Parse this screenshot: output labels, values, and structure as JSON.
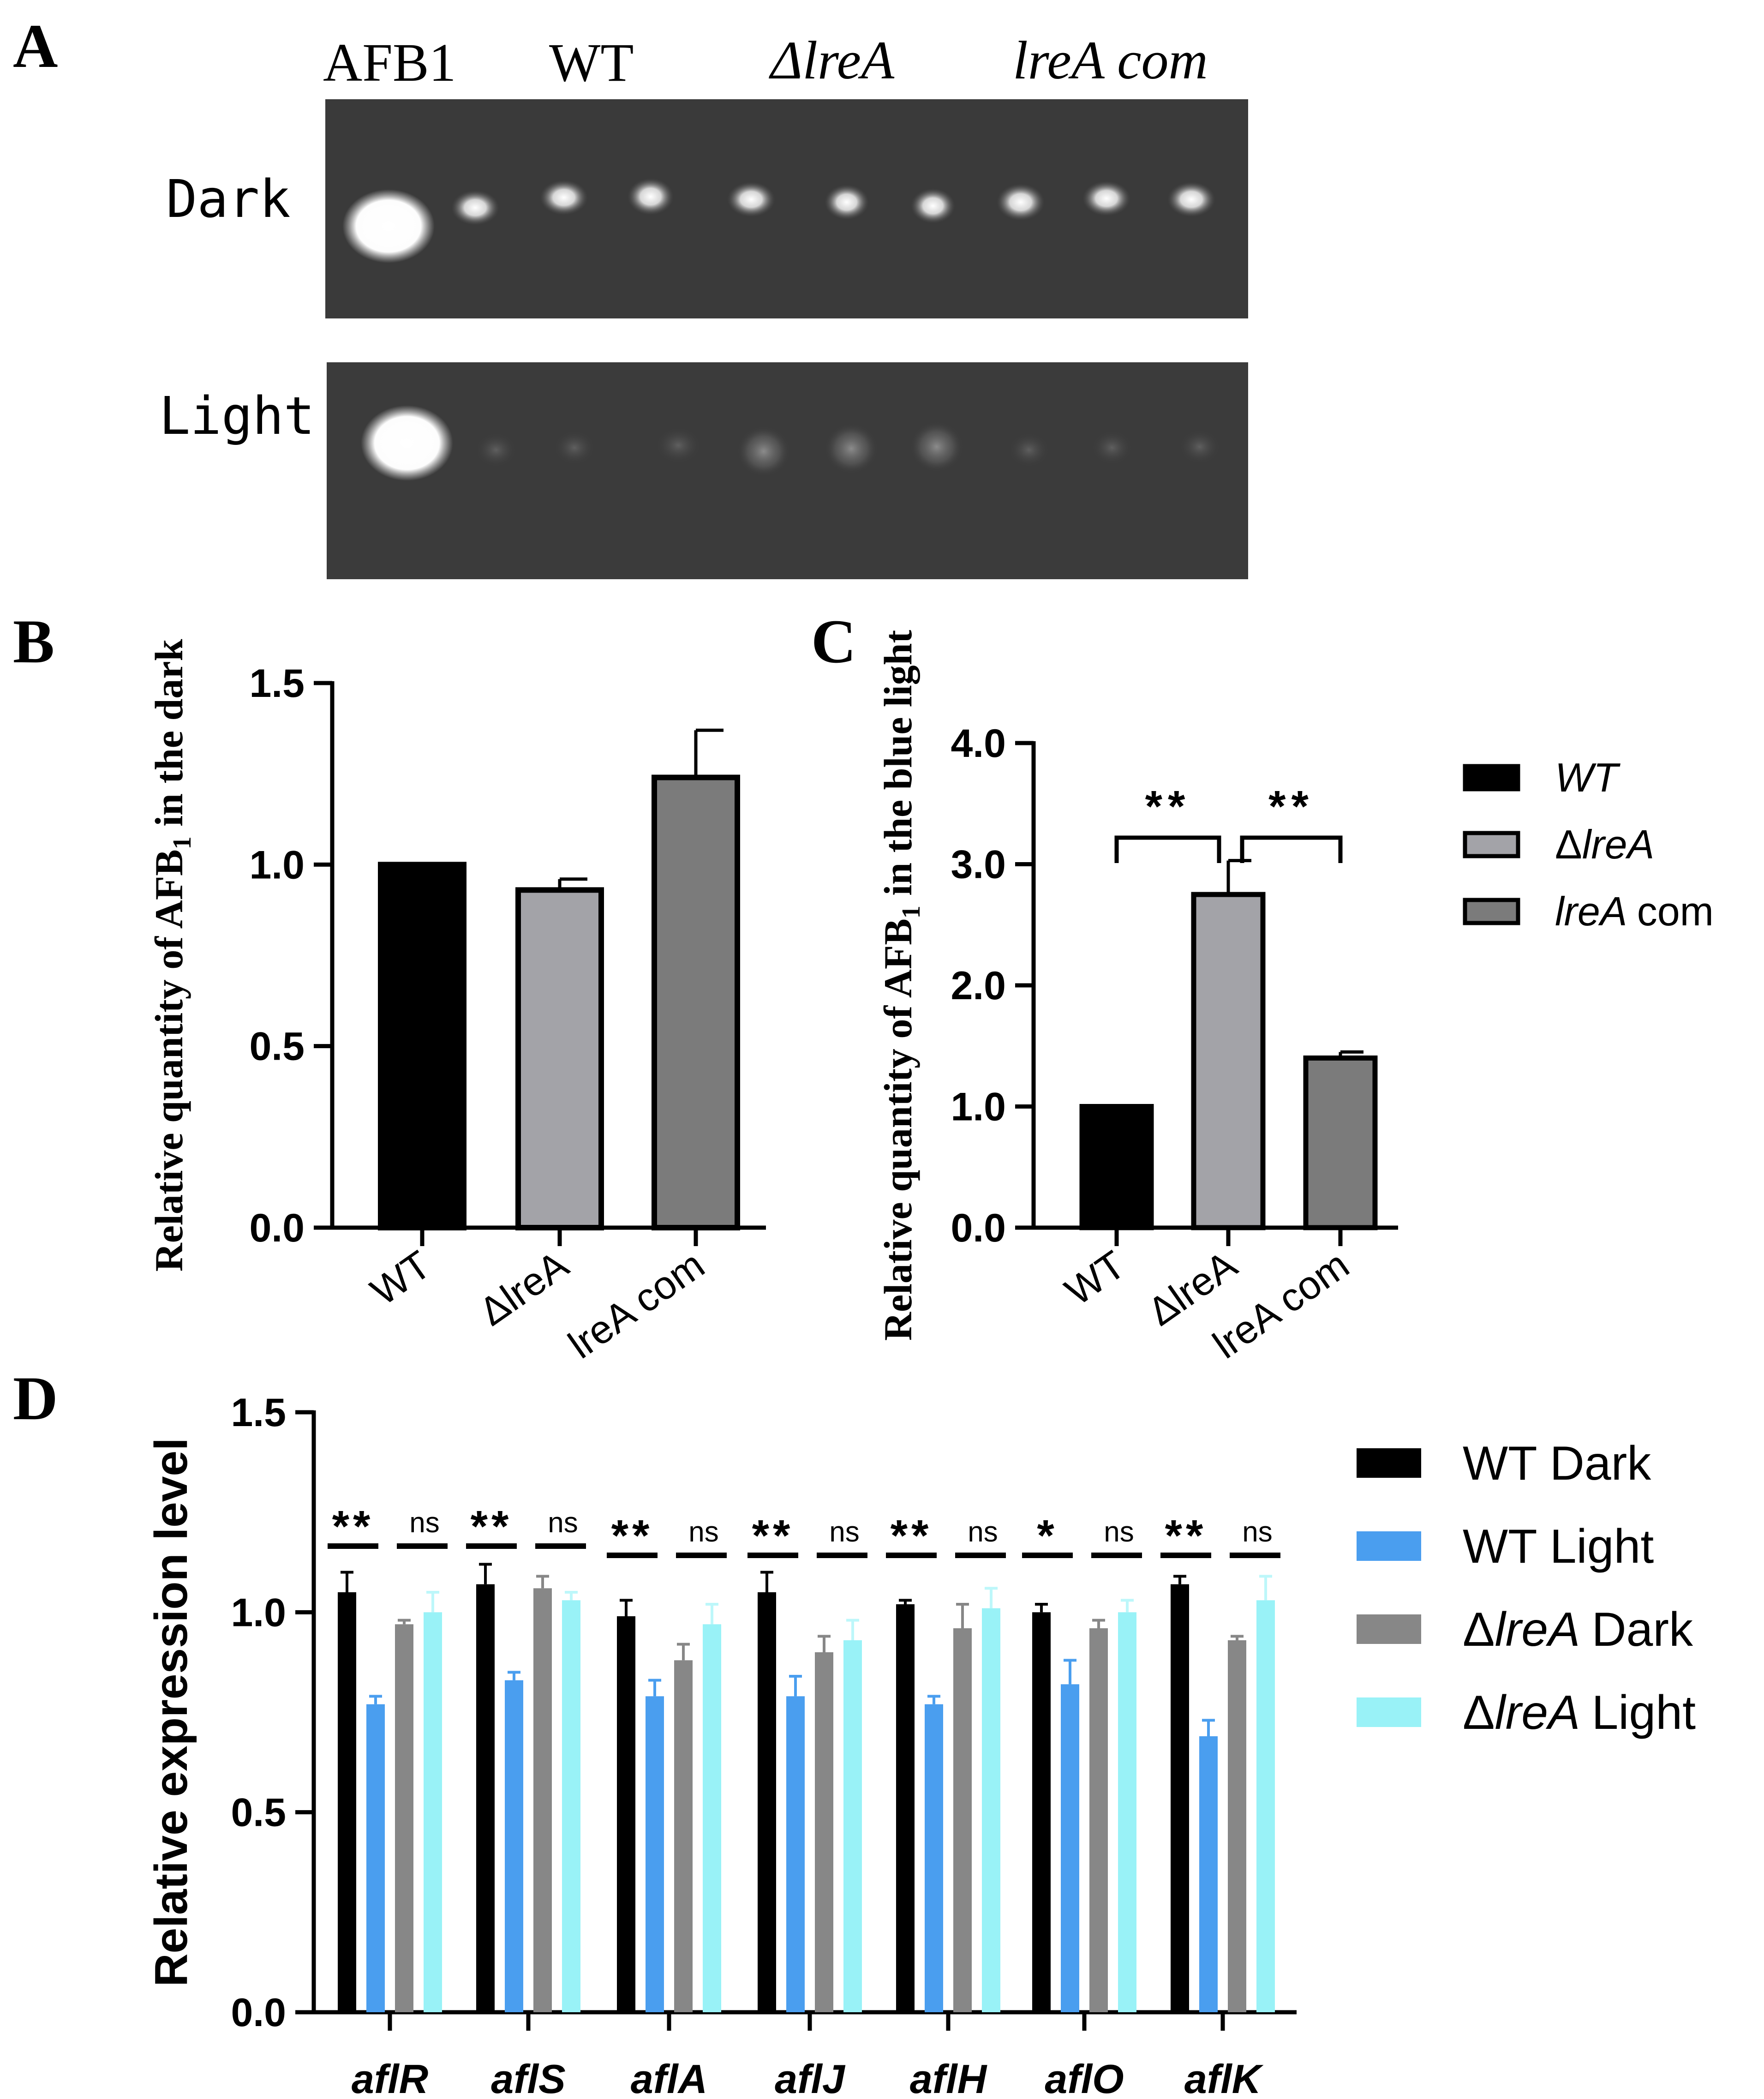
{
  "panel_letters": {
    "a": "A",
    "b": "B",
    "c": "C",
    "d": "D"
  },
  "gel": {
    "lane_labels": [
      "AFB1",
      "WT",
      "ΔlreA",
      "lreA com"
    ],
    "rows": [
      "Dark",
      "Light"
    ]
  },
  "colors": {
    "wt": "#000000",
    "dlrea": "#a3a3a8",
    "lrea_com": "#7b7b7b",
    "wt_dark": "#000000",
    "wt_light": "#4a9eef",
    "dlrea_dark": "#878787",
    "dlrea_light": "#99f2f7"
  },
  "chart_data": [
    {
      "id": "B",
      "type": "bar",
      "ylabel": "Relative quantity of AFB1 in the dark",
      "ylim": [
        0,
        1.5
      ],
      "yticks": [
        0.0,
        0.5,
        1.0,
        1.5
      ],
      "ytick_labels": [
        "0.0",
        "0.5",
        "1.0",
        "1.5"
      ],
      "categories": [
        "WT",
        "ΔlreA",
        "lreA com"
      ],
      "values": [
        1.0,
        0.93,
        1.24
      ],
      "errors": [
        0.0,
        0.03,
        0.13
      ]
    },
    {
      "id": "C",
      "type": "bar",
      "ylabel": "Relative quantity of AFB1 in the blue light",
      "ylim": [
        0,
        4.0
      ],
      "yticks": [
        0.0,
        1.0,
        2.0,
        3.0,
        4.0
      ],
      "ytick_labels": [
        "0.0",
        "1.0",
        "2.0",
        "3.0",
        "4.0"
      ],
      "categories": [
        "WT",
        "ΔlreA",
        "lreA com"
      ],
      "values": [
        1.0,
        2.75,
        1.4
      ],
      "errors": [
        0.0,
        0.28,
        0.05
      ],
      "significance": [
        {
          "from": 0,
          "to": 1,
          "label": "**"
        },
        {
          "from": 1,
          "to": 2,
          "label": "**"
        }
      ],
      "legend": [
        "WT",
        "ΔlreA",
        "lreA com"
      ]
    },
    {
      "id": "D",
      "type": "bar",
      "ylabel": "Relative expression level",
      "ylim": [
        0,
        1.5
      ],
      "yticks": [
        0.0,
        0.5,
        1.0,
        1.5
      ],
      "ytick_labels": [
        "0.0",
        "0.5",
        "1.0",
        "1.5"
      ],
      "categories": [
        "aflR",
        "aflS",
        "aflA",
        "aflJ",
        "aflH",
        "aflO",
        "aflK"
      ],
      "series": [
        {
          "name": "WT Dark",
          "values": [
            1.05,
            1.07,
            0.99,
            1.05,
            1.02,
            1.0,
            1.07
          ],
          "errors": [
            0.05,
            0.05,
            0.04,
            0.05,
            0.01,
            0.02,
            0.02
          ]
        },
        {
          "name": "WT Light",
          "values": [
            0.77,
            0.83,
            0.79,
            0.79,
            0.77,
            0.82,
            0.69
          ],
          "errors": [
            0.02,
            0.02,
            0.04,
            0.05,
            0.02,
            0.06,
            0.04
          ]
        },
        {
          "name": "ΔlreA Dark",
          "values": [
            0.97,
            1.06,
            0.88,
            0.9,
            0.96,
            0.96,
            0.93
          ],
          "errors": [
            0.01,
            0.03,
            0.04,
            0.04,
            0.06,
            0.02,
            0.01
          ]
        },
        {
          "name": "ΔlreA Light",
          "values": [
            1.0,
            1.03,
            0.97,
            0.93,
            1.01,
            1.0,
            1.03
          ],
          "errors": [
            0.05,
            0.02,
            0.05,
            0.05,
            0.05,
            0.03,
            0.06
          ]
        }
      ],
      "significance": [
        {
          "left": "**",
          "right": "ns"
        },
        {
          "left": "**",
          "right": "ns"
        },
        {
          "left": "**",
          "right": "ns"
        },
        {
          "left": "**",
          "right": "ns"
        },
        {
          "left": "**",
          "right": "ns"
        },
        {
          "left": "*",
          "right": "ns"
        },
        {
          "left": "**",
          "right": "ns"
        }
      ],
      "legend": [
        "WT Dark",
        "WT Light",
        "ΔlreA Dark",
        "ΔlreA Light"
      ]
    }
  ]
}
